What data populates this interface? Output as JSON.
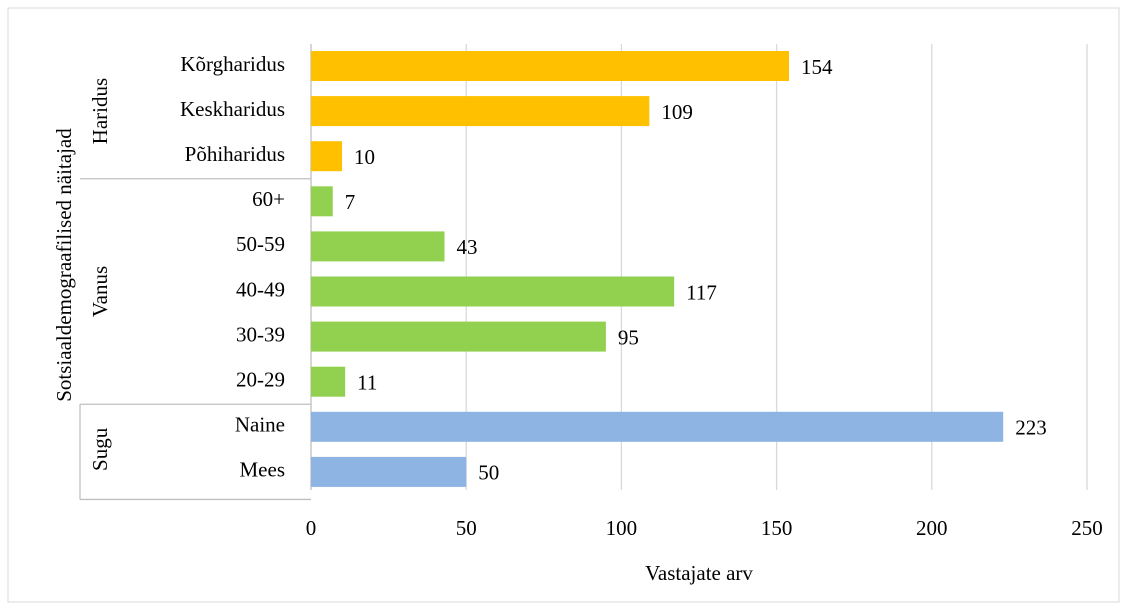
{
  "chart_data": {
    "type": "bar",
    "orientation": "horizontal",
    "y_label": "Sotsiaaldemograafilised näitajad",
    "x_label": "Vastajate arv",
    "groups": [
      {
        "name": "Haridus",
        "color": "#ffc000",
        "categories": [
          "Kõrgharidus",
          "Keskharidus",
          "Põhiharidus"
        ],
        "values": [
          154,
          109,
          10
        ]
      },
      {
        "name": "Vanus",
        "color": "#92d050",
        "categories": [
          "60+",
          "50-59",
          "40-49",
          "30-39",
          "20-29"
        ],
        "values": [
          7,
          43,
          117,
          95,
          11
        ]
      },
      {
        "name": "Sugu",
        "color": "#8eb4e3",
        "categories": [
          "Naine",
          "Mees"
        ],
        "values": [
          223,
          50
        ]
      }
    ],
    "xlim": [
      0,
      250
    ],
    "xticks": [
      0,
      50,
      100,
      150,
      200,
      250
    ],
    "grid": true
  }
}
